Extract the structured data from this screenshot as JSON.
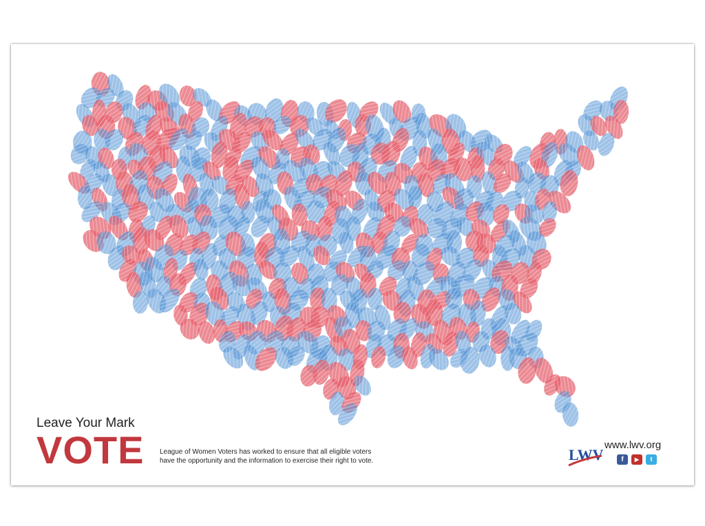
{
  "poster": {
    "tagline": "Leave Your Mark",
    "headline": "VOTE",
    "mission_line1": "League of Women Voters has worked to ensure that all eligible voters",
    "mission_line2": "have the opportunity and the information to exercise their right to vote.",
    "website": "www.lwv.org",
    "logo_text": "LWV"
  },
  "colors": {
    "red_print": "#e45d6a",
    "blue_print": "#4f8fd3",
    "headline": "#c1383e",
    "logo_blue": "#1f4e9c"
  },
  "icons": {
    "social": [
      "facebook-icon",
      "youtube-icon",
      "twitter-icon"
    ]
  }
}
